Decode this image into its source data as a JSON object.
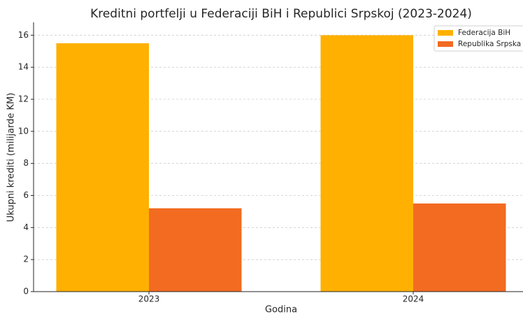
{
  "chart_data": {
    "type": "bar",
    "title": "Kreditni portfelji u Federaciji BiH i Republici Srpskoj (2023-2024)",
    "x_label": "Godina",
    "y_label": "Ukupni krediti (milijarde KM)",
    "categories": [
      "2023",
      "2024"
    ],
    "series": [
      {
        "name": "Federacija BiH",
        "color": "#ffb000",
        "values": [
          15.5,
          16.0
        ]
      },
      {
        "name": "Republika Srpska",
        "color": "#f26b21",
        "values": [
          5.2,
          5.5
        ]
      }
    ],
    "ylim": [
      0,
      16.8
    ],
    "yticks": [
      0,
      2,
      4,
      6,
      8,
      10,
      12,
      14,
      16
    ],
    "grid": true,
    "legend": "upper right"
  }
}
